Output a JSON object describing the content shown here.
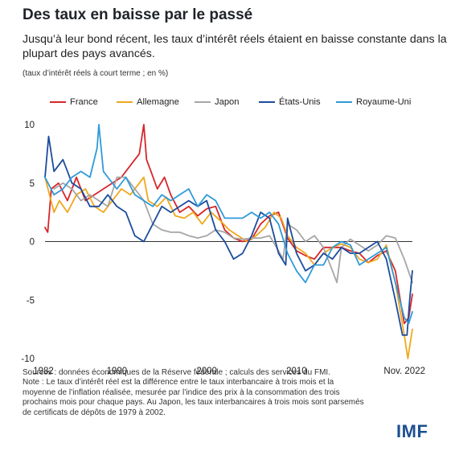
{
  "title": "Des taux en baisse par le passé",
  "subtitle": "Jusqu’à leur bond récent, les taux d’intérêt réels étaient en baisse constante dans la plupart des pays avancés.",
  "unit_note": "(taux d’intérêt réels à court terme ; en %)",
  "sources": "Sources : données économiques de la Réserve fédérale ; calculs des services du FMI.",
  "note": "Note : Le taux d’intérêt réel est la différence entre le taux interbancaire à trois mois et la moyenne de l’inflation réalisée, mesurée par l’indice des prix à la consommation des trois prochains mois pour chaque pays. Au Japon, les taux interbancaires à trois mois sont parsemés de certificats de dépôts de 1979 à 2002.",
  "logo": "IMF",
  "colors": {
    "france": "#d7262b",
    "allemagne": "#f0a81c",
    "japon": "#a6a6a6",
    "etats_unis": "#1c4c9c",
    "royaume_uni": "#2f9ad9",
    "zero_line": "#333333",
    "axis_text": "#222222"
  },
  "chart_data": {
    "type": "line",
    "title": "Des taux en baisse par le passé",
    "xlabel": "",
    "ylabel": "",
    "xlim": [
      1982,
      2022.9
    ],
    "ylim": [
      -10,
      10
    ],
    "x_ticks": [
      {
        "value": 1982,
        "label": "1982"
      },
      {
        "value": 1990,
        "label": "1990"
      },
      {
        "value": 2000,
        "label": "2000"
      },
      {
        "value": 2010,
        "label": "2010"
      },
      {
        "value": 2022.9,
        "label": "Nov. 2022"
      }
    ],
    "y_ticks": [
      {
        "value": 10,
        "label": "10"
      },
      {
        "value": 5,
        "label": "5"
      },
      {
        "value": 0,
        "label": "0"
      },
      {
        "value": -5,
        "label": "-5"
      },
      {
        "value": -10,
        "label": "-10"
      }
    ],
    "grid": false,
    "legend_position": "top",
    "series": [
      {
        "key": "france",
        "name": "France",
        "color": "#d7262b",
        "points": [
          [
            1982,
            1.2
          ],
          [
            1982.3,
            0.8
          ],
          [
            1982.7,
            4.5
          ],
          [
            1983.5,
            5
          ],
          [
            1984.5,
            3.5
          ],
          [
            1985.5,
            5.5
          ],
          [
            1986.5,
            3.5
          ],
          [
            1987.5,
            4
          ],
          [
            1988.5,
            4.5
          ],
          [
            1989.5,
            5
          ],
          [
            1990.5,
            5.5
          ],
          [
            1991.5,
            6.5
          ],
          [
            1992.5,
            7.5
          ],
          [
            1993,
            10
          ],
          [
            1993.3,
            7
          ],
          [
            1993.8,
            6
          ],
          [
            1994.5,
            4.5
          ],
          [
            1995.3,
            5.5
          ],
          [
            1996,
            4
          ],
          [
            1997,
            2.5
          ],
          [
            1998,
            3
          ],
          [
            1999,
            2.2
          ],
          [
            2000,
            2.8
          ],
          [
            2001,
            3
          ],
          [
            2002,
            1
          ],
          [
            2003,
            0.3
          ],
          [
            2004,
            0
          ],
          [
            2005,
            0.2
          ],
          [
            2006,
            1.5
          ],
          [
            2007,
            2.2
          ],
          [
            2008,
            2.5
          ],
          [
            2009,
            0.3
          ],
          [
            2010,
            -0.8
          ],
          [
            2011,
            -1.2
          ],
          [
            2012,
            -1.5
          ],
          [
            2013,
            -0.5
          ],
          [
            2014,
            -0.5
          ],
          [
            2015,
            -0.5
          ],
          [
            2016,
            -0.8
          ],
          [
            2017,
            -1
          ],
          [
            2018,
            -1.8
          ],
          [
            2019,
            -1.2
          ],
          [
            2020,
            -0.8
          ],
          [
            2021,
            -2.5
          ],
          [
            2022,
            -7
          ],
          [
            2022.5,
            -6.5
          ],
          [
            2022.9,
            -4.5
          ]
        ]
      },
      {
        "key": "allemagne",
        "name": "Allemagne",
        "color": "#f0a81c",
        "points": [
          [
            1982,
            5.5
          ],
          [
            1982.5,
            4
          ],
          [
            1983,
            2.5
          ],
          [
            1983.6,
            3.5
          ],
          [
            1984.5,
            2.5
          ],
          [
            1985.5,
            4
          ],
          [
            1986.5,
            4.5
          ],
          [
            1987.5,
            3
          ],
          [
            1988.5,
            2.5
          ],
          [
            1989.5,
            3.5
          ],
          [
            1990.5,
            4.5
          ],
          [
            1991.5,
            4
          ],
          [
            1992.5,
            5
          ],
          [
            1993,
            5.5
          ],
          [
            1993.5,
            3.5
          ],
          [
            1994.5,
            3
          ],
          [
            1995.5,
            3.8
          ],
          [
            1996.5,
            2.2
          ],
          [
            1997.5,
            2
          ],
          [
            1998.5,
            2.5
          ],
          [
            1999.5,
            1.5
          ],
          [
            2000.5,
            2.5
          ],
          [
            2001.5,
            1.8
          ],
          [
            2002.5,
            1
          ],
          [
            2003.5,
            0.5
          ],
          [
            2004.5,
            0
          ],
          [
            2005.5,
            0.5
          ],
          [
            2006.5,
            1.2
          ],
          [
            2007.5,
            2.5
          ],
          [
            2008.3,
            2
          ],
          [
            2009,
            0.5
          ],
          [
            2010,
            -0.5
          ],
          [
            2011,
            -1
          ],
          [
            2012,
            -2
          ],
          [
            2013,
            -1
          ],
          [
            2014,
            -0.5
          ],
          [
            2015,
            -0.2
          ],
          [
            2016,
            -0.5
          ],
          [
            2017,
            -1.5
          ],
          [
            2018,
            -1.8
          ],
          [
            2019,
            -1.5
          ],
          [
            2020,
            -0.3
          ],
          [
            2021,
            -3.5
          ],
          [
            2022,
            -8
          ],
          [
            2022.4,
            -10
          ],
          [
            2022.6,
            -9
          ],
          [
            2022.9,
            -7.5
          ]
        ]
      },
      {
        "key": "japon",
        "name": "Japon",
        "color": "#a6a6a6",
        "points": [
          [
            1983,
            4.5
          ],
          [
            1984,
            5
          ],
          [
            1985,
            4.5
          ],
          [
            1986,
            3.5
          ],
          [
            1987,
            4
          ],
          [
            1988,
            3.5
          ],
          [
            1989,
            3
          ],
          [
            1990,
            5.5
          ],
          [
            1991,
            5.5
          ],
          [
            1992,
            4.5
          ],
          [
            1993,
            3.5
          ],
          [
            1994,
            1.5
          ],
          [
            1995,
            1
          ],
          [
            1996,
            0.8
          ],
          [
            1997,
            0.8
          ],
          [
            1998,
            0.5
          ],
          [
            1999,
            0.3
          ],
          [
            2000,
            0.5
          ],
          [
            2001,
            1
          ],
          [
            2002,
            0.8
          ],
          [
            2003,
            0.3
          ],
          [
            2004,
            0.2
          ],
          [
            2005,
            0.3
          ],
          [
            2006,
            0.3
          ],
          [
            2007,
            0.5
          ],
          [
            2008,
            -0.8
          ],
          [
            2008.5,
            -1.5
          ],
          [
            2009,
            1.5
          ],
          [
            2010,
            1
          ],
          [
            2011,
            0
          ],
          [
            2012,
            0.5
          ],
          [
            2013,
            -0.5
          ],
          [
            2014,
            -2.5
          ],
          [
            2014.5,
            -3.5
          ],
          [
            2015,
            -0.5
          ],
          [
            2016,
            0.2
          ],
          [
            2017,
            -0.3
          ],
          [
            2018,
            -0.8
          ],
          [
            2019,
            -0.3
          ],
          [
            2020,
            0.5
          ],
          [
            2021,
            0.3
          ],
          [
            2022,
            -1.5
          ],
          [
            2022.9,
            -3.5
          ]
        ]
      },
      {
        "key": "etats_unis",
        "name": "États-Unis",
        "color": "#1c4c9c",
        "points": [
          [
            1982,
            5.5
          ],
          [
            1982.4,
            9
          ],
          [
            1983,
            6
          ],
          [
            1984,
            7
          ],
          [
            1985,
            5
          ],
          [
            1986,
            4.5
          ],
          [
            1987,
            3
          ],
          [
            1988,
            3
          ],
          [
            1989,
            4
          ],
          [
            1990,
            3
          ],
          [
            1991,
            2.5
          ],
          [
            1992,
            0.5
          ],
          [
            1993,
            0
          ],
          [
            1994,
            1.5
          ],
          [
            1995,
            3
          ],
          [
            1996,
            2.5
          ],
          [
            1997,
            3
          ],
          [
            1998,
            3.5
          ],
          [
            1999,
            3
          ],
          [
            2000,
            3.5
          ],
          [
            2001,
            1
          ],
          [
            2002,
            0
          ],
          [
            2003,
            -1.5
          ],
          [
            2004,
            -1
          ],
          [
            2005,
            0.5
          ],
          [
            2006,
            2.5
          ],
          [
            2007,
            2
          ],
          [
            2008,
            -1
          ],
          [
            2008.8,
            -2
          ],
          [
            2009,
            2
          ],
          [
            2010,
            -1
          ],
          [
            2011,
            -2.5
          ],
          [
            2012,
            -2
          ],
          [
            2013,
            -1
          ],
          [
            2014,
            -1.5
          ],
          [
            2015,
            -0.5
          ],
          [
            2016,
            -1
          ],
          [
            2017,
            -1
          ],
          [
            2018,
            -0.5
          ],
          [
            2019,
            0
          ],
          [
            2020,
            -1.5
          ],
          [
            2021,
            -5
          ],
          [
            2021.8,
            -8
          ],
          [
            2022.3,
            -8
          ],
          [
            2022.6,
            -5
          ],
          [
            2022.9,
            -2.5
          ]
        ]
      },
      {
        "key": "royaume_uni",
        "name": "Royaume-Uni",
        "color": "#2f9ad9",
        "points": [
          [
            1982,
            5.5
          ],
          [
            1983,
            4
          ],
          [
            1984,
            4.5
          ],
          [
            1985,
            5.5
          ],
          [
            1986,
            6
          ],
          [
            1987,
            5.5
          ],
          [
            1987.8,
            8
          ],
          [
            1988,
            10
          ],
          [
            1988.5,
            6
          ],
          [
            1989,
            5.5
          ],
          [
            1990,
            4.5
          ],
          [
            1991,
            5.5
          ],
          [
            1992,
            4
          ],
          [
            1993,
            3.5
          ],
          [
            1994,
            3
          ],
          [
            1995,
            4
          ],
          [
            1996,
            3.5
          ],
          [
            1997,
            4
          ],
          [
            1998,
            4.5
          ],
          [
            1999,
            3
          ],
          [
            2000,
            4
          ],
          [
            2001,
            3.5
          ],
          [
            2002,
            2
          ],
          [
            2003,
            2
          ],
          [
            2004,
            2
          ],
          [
            2005,
            2.5
          ],
          [
            2006,
            2
          ],
          [
            2007,
            2.5
          ],
          [
            2008,
            1.5
          ],
          [
            2009,
            -1
          ],
          [
            2010,
            -2.5
          ],
          [
            2011,
            -3.5
          ],
          [
            2012,
            -2
          ],
          [
            2013,
            -2
          ],
          [
            2014,
            -0.5
          ],
          [
            2015,
            0
          ],
          [
            2016,
            -0.3
          ],
          [
            2017,
            -2
          ],
          [
            2018,
            -1.5
          ],
          [
            2019,
            -1
          ],
          [
            2020,
            -0.5
          ],
          [
            2021,
            -3.5
          ],
          [
            2022,
            -6.5
          ],
          [
            2022.5,
            -7
          ],
          [
            2022.9,
            -6
          ]
        ]
      }
    ]
  }
}
